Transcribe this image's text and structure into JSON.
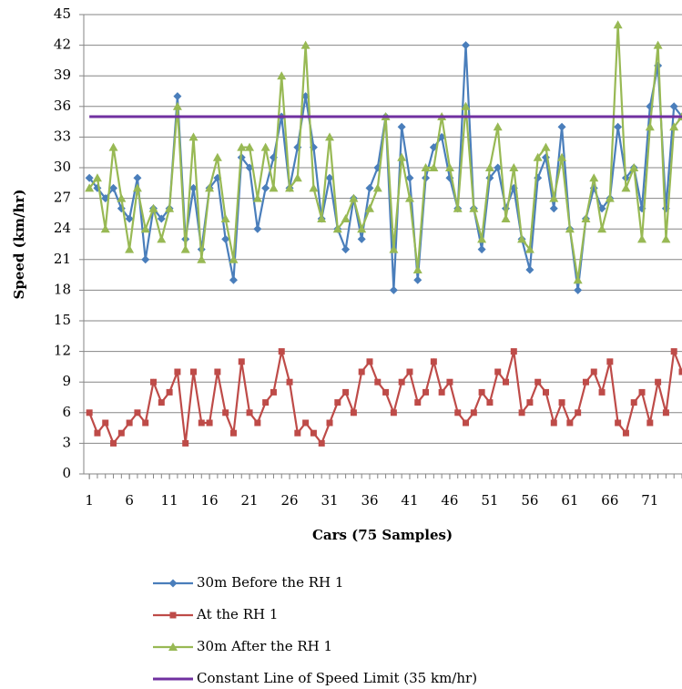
{
  "chart_data": {
    "type": "line",
    "x_label": "Cars (75 Samples)",
    "y_label": "Speed (km/hr)",
    "x": [
      1,
      2,
      3,
      4,
      5,
      6,
      7,
      8,
      9,
      10,
      11,
      12,
      13,
      14,
      15,
      16,
      17,
      18,
      19,
      20,
      21,
      22,
      23,
      24,
      25,
      26,
      27,
      28,
      29,
      30,
      31,
      32,
      33,
      34,
      35,
      36,
      37,
      38,
      39,
      40,
      41,
      42,
      43,
      44,
      45,
      46,
      47,
      48,
      49,
      50,
      51,
      52,
      53,
      54,
      55,
      56,
      57,
      58,
      59,
      60,
      61,
      62,
      63,
      64,
      65,
      66,
      67,
      68,
      69,
      70,
      71,
      72,
      73,
      74,
      75
    ],
    "xlim": [
      0.3,
      75
    ],
    "xticks": [
      1,
      6,
      11,
      16,
      21,
      26,
      31,
      36,
      41,
      46,
      51,
      56,
      61,
      66,
      71
    ],
    "ylim": [
      0,
      45
    ],
    "yticks": [
      0,
      3,
      6,
      9,
      12,
      15,
      18,
      21,
      24,
      27,
      30,
      33,
      36,
      39,
      42,
      45
    ],
    "grid": true,
    "legend": "bottom",
    "series": [
      {
        "name": "30m Before the RH 1",
        "color": "#4a7ebb",
        "marker": "diamond",
        "values": [
          29,
          28,
          27,
          28,
          26,
          25,
          29,
          21,
          26,
          25,
          26,
          37,
          23,
          28,
          22,
          28,
          29,
          23,
          19,
          31,
          30,
          24,
          28,
          31,
          35,
          28,
          32,
          37,
          32,
          25,
          29,
          24,
          22,
          27,
          23,
          28,
          30,
          35,
          18,
          34,
          29,
          19,
          29,
          32,
          33,
          29,
          26,
          42,
          26,
          22,
          29,
          30,
          26,
          28,
          23,
          20,
          29,
          31,
          26,
          34,
          24,
          18,
          25,
          28,
          26,
          27,
          34,
          29,
          30,
          26,
          36,
          40,
          26,
          36,
          35
        ]
      },
      {
        "name": "At the RH 1",
        "color": "#be4b48",
        "marker": "square",
        "values": [
          6,
          4,
          5,
          3,
          4,
          5,
          6,
          5,
          9,
          7,
          8,
          10,
          3,
          10,
          5,
          5,
          10,
          6,
          4,
          11,
          6,
          5,
          7,
          8,
          12,
          9,
          4,
          5,
          4,
          3,
          5,
          7,
          8,
          6,
          10,
          11,
          9,
          8,
          6,
          9,
          10,
          7,
          8,
          11,
          8,
          9,
          6,
          5,
          6,
          8,
          7,
          10,
          9,
          12,
          6,
          7,
          9,
          8,
          5,
          7,
          5,
          6,
          9,
          10,
          8,
          11,
          5,
          4,
          7,
          8,
          5,
          9,
          6,
          12,
          10
        ]
      },
      {
        "name": "30m After the RH 1",
        "color": "#98b954",
        "marker": "triangle",
        "values": [
          28,
          29,
          24,
          32,
          27,
          22,
          28,
          24,
          26,
          23,
          26,
          36,
          22,
          33,
          21,
          28,
          31,
          25,
          21,
          32,
          32,
          27,
          32,
          28,
          39,
          28,
          29,
          42,
          28,
          25,
          33,
          24,
          25,
          27,
          24,
          26,
          28,
          35,
          22,
          31,
          27,
          20,
          30,
          30,
          35,
          30,
          26,
          36,
          26,
          23,
          30,
          34,
          25,
          30,
          23,
          22,
          31,
          32,
          27,
          31,
          24,
          19,
          25,
          29,
          24,
          27,
          44,
          28,
          30,
          23,
          34,
          42,
          23,
          34,
          35
        ]
      }
    ],
    "reference_line": {
      "name": "Constant Line of Speed Limit (35 km/hr)",
      "value": 35,
      "color": "#7030a0"
    }
  }
}
